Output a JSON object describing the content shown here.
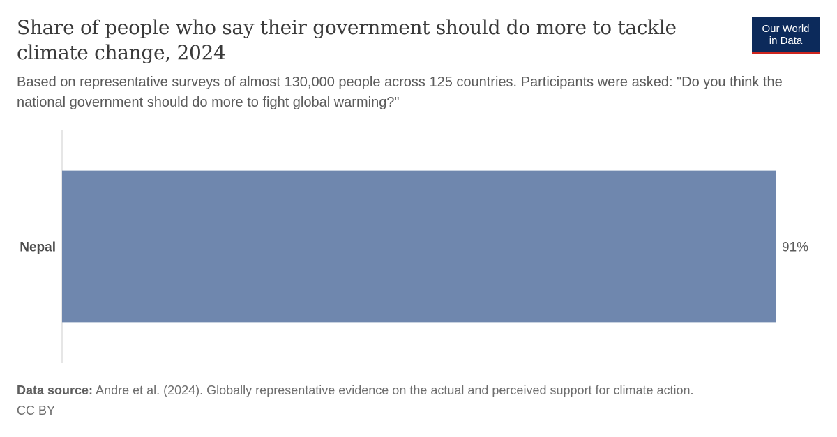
{
  "header": {
    "title": "Share of people who say their government should do more to tackle climate change, 2024",
    "subtitle": "Based on representative surveys of almost 130,000 people across 125 countries. Participants were asked: \"Do you think the national government should do more to fight global warming?\""
  },
  "logo": {
    "line1": "Our World",
    "line2": "in Data"
  },
  "footer": {
    "source_label": "Data source:",
    "source_text": "Andre et al. (2024). Globally representative evidence on the actual and perceived support for climate action.",
    "license": "CC BY"
  },
  "colors": {
    "bar": "#6f87ae",
    "axis": "#cccccc",
    "logo_bg": "#0c2a5b",
    "logo_accent": "#ce261e"
  },
  "chart_data": {
    "type": "bar",
    "orientation": "horizontal",
    "title": "Share of people who say their government should do more to tackle climate change, 2024",
    "categories": [
      "Nepal"
    ],
    "values": [
      91
    ],
    "value_labels": [
      "91%"
    ],
    "unit": "%",
    "xlim": [
      0,
      91
    ],
    "grid": false,
    "legend": "none"
  }
}
